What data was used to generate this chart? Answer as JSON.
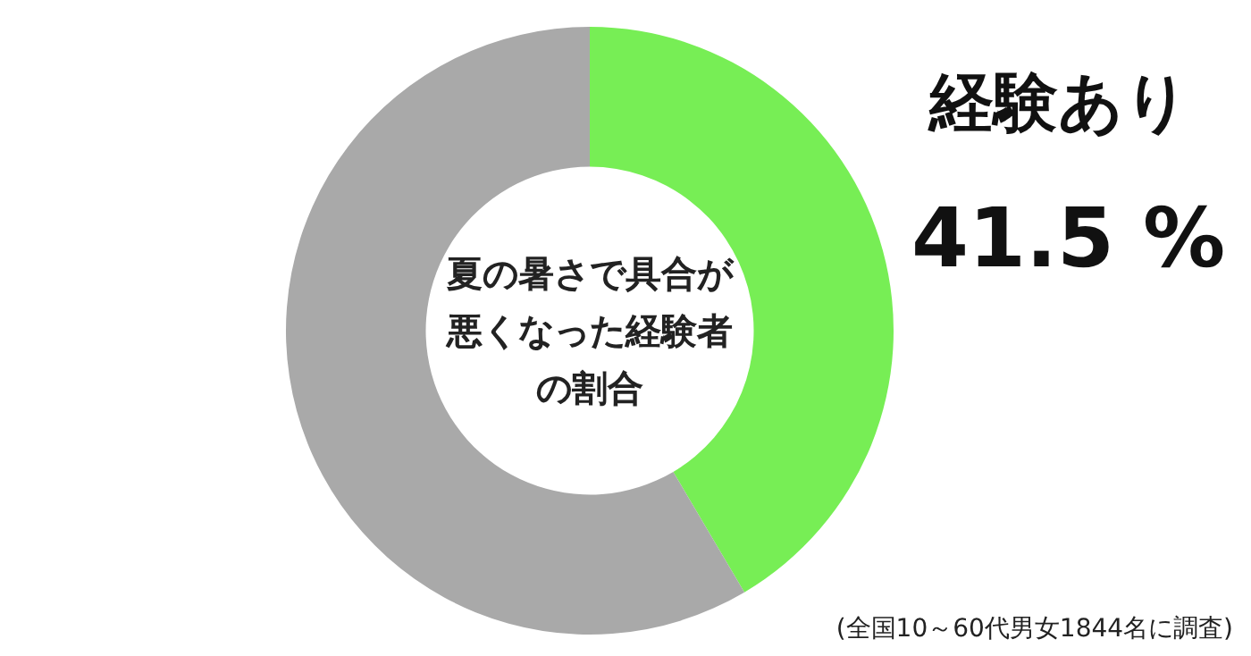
{
  "chart_data": {
    "type": "donut",
    "title": "夏の暑さで具合が悪くなった経験者の割合",
    "categories": [
      "経験あり",
      null
    ],
    "values": [
      41.5,
      58.5
    ],
    "colors": [
      "#77ee55",
      "#a9a9a9"
    ],
    "value_labels": [
      "41.5 %",
      null
    ],
    "legend": false,
    "annotations": [
      "(全国10～60代男女1844名に調査)"
    ]
  }
}
